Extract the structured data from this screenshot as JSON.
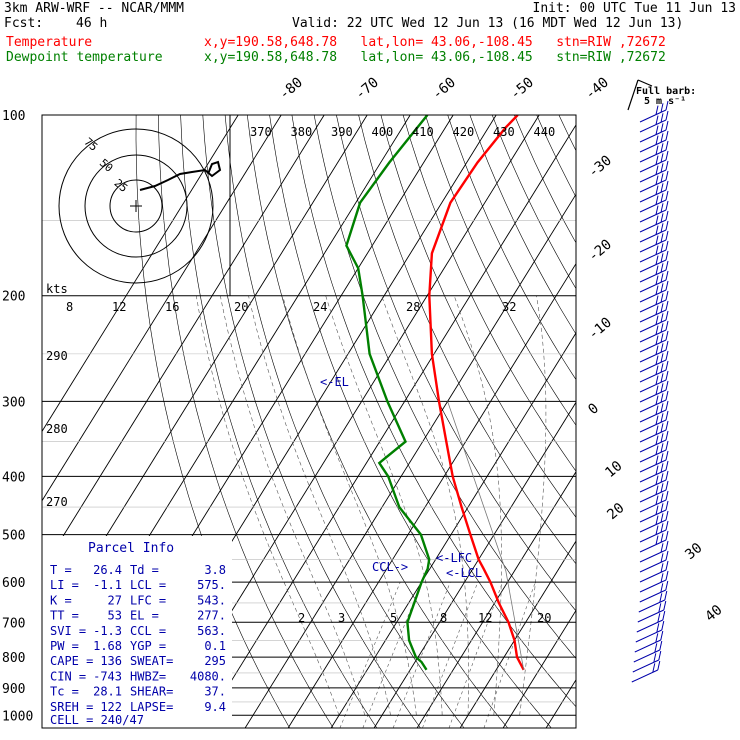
{
  "header": {
    "model": "3km ARW-WRF -- NCAR/MMM",
    "init": "Init: 00 UTC Tue 11 Jun 13",
    "fcst_label": "Fcst:",
    "fcst_value": "46 h",
    "valid": "Valid: 22 UTC Wed 12 Jun 13 (16 MDT Wed 12 Jun 13)",
    "temp_label": "Temperature",
    "temp_info": "x,y=190.58,648.78   lat,lon= 43.06,-108.45   stn=RIW ,72672",
    "dew_label": "Dewpoint temperature",
    "dew_info": "x,y=190.58,648.78   lat,lon= 43.06,-108.45   stn=RIW ,72672",
    "colors": {
      "temperature": "#ff0000",
      "dewpoint": "#008000"
    }
  },
  "chart_data": {
    "type": "line",
    "subtype": "skew-T log-P sounding",
    "y_axis_scale": "log",
    "ylim": [
      1000,
      100
    ],
    "pressure_ticks": [
      "100",
      "200",
      "300",
      "400",
      "500",
      "600",
      "700",
      "800",
      "900",
      "1000"
    ],
    "isotherm_labels": [
      "-80",
      "-70",
      "-60",
      "-50",
      "-40",
      "-30",
      "-20",
      "-10",
      "0",
      "10",
      "20",
      "30",
      "40"
    ],
    "mixing_ratio_labels": [
      "2",
      "3",
      "5",
      "8",
      "12",
      "20"
    ],
    "theta_e_labels": [
      "370",
      "380",
      "390",
      "400",
      "410",
      "420",
      "430",
      "440"
    ],
    "bottom_theta_labels": [
      "290",
      "280",
      "270"
    ],
    "series": [
      {
        "name": "Temperature",
        "color": "#ff0000",
        "points": [
          [
            840,
            26.4
          ],
          [
            800,
            23.0
          ],
          [
            750,
            20.0
          ],
          [
            700,
            16.0
          ],
          [
            650,
            11.0
          ],
          [
            600,
            6.0
          ],
          [
            570,
            2.5
          ],
          [
            550,
            0.0
          ],
          [
            500,
            -5.5
          ],
          [
            450,
            -11.5
          ],
          [
            400,
            -18.0
          ],
          [
            350,
            -24.5
          ],
          [
            300,
            -32.0
          ],
          [
            250,
            -40.5
          ],
          [
            200,
            -49.5
          ],
          [
            170,
            -55.0
          ],
          [
            140,
            -58.0
          ],
          [
            120,
            -57.5
          ],
          [
            105,
            -56.0
          ],
          [
            100,
            -55.0
          ]
        ]
      },
      {
        "name": "Dewpoint temperature",
        "color": "#008000",
        "points": [
          [
            840,
            3.8
          ],
          [
            815,
            1.5
          ],
          [
            800,
            -0.5
          ],
          [
            750,
            -4.5
          ],
          [
            700,
            -7.5
          ],
          [
            600,
            -10.0
          ],
          [
            570,
            -10.5
          ],
          [
            550,
            -11.5
          ],
          [
            500,
            -17.0
          ],
          [
            450,
            -26.0
          ],
          [
            400,
            -33.0
          ],
          [
            380,
            -37.0
          ],
          [
            350,
            -34.0
          ],
          [
            300,
            -44.0
          ],
          [
            250,
            -55.0
          ],
          [
            200,
            -65.0
          ],
          [
            180,
            -70.0
          ],
          [
            165,
            -76.0
          ],
          [
            140,
            -79.0
          ],
          [
            120,
            -78.0
          ],
          [
            100,
            -76.0
          ]
        ]
      }
    ],
    "annotations": {
      "el": "<-EL",
      "lfc": "<-LFC",
      "lcl": "<-LCL",
      "ccl": "CCL->"
    },
    "parcel_info": {
      "title": "Parcel Info",
      "rows": [
        [
          "T  =",
          "26.4",
          "Td =",
          "3.8"
        ],
        [
          "LI =",
          "-1.1",
          "LCL =",
          "575."
        ],
        [
          "K  =",
          "27",
          "LFC =",
          "543."
        ],
        [
          "TT =",
          "53",
          "EL  =",
          "277."
        ],
        [
          "SVI =",
          "-1.3",
          "CCL =",
          "563."
        ],
        [
          "PW =",
          "1.68",
          "YGP =",
          "0.1"
        ],
        [
          "CAPE =",
          "136",
          "SWEAT=",
          "295"
        ],
        [
          "CIN =",
          "-743",
          "HWBZ=",
          "4080."
        ],
        [
          "Tc =",
          "28.1",
          "SHEAR=",
          "37."
        ],
        [
          "SREH =",
          "122",
          "LAPSE=",
          "9.4"
        ]
      ],
      "cell": "CELL = 240/47"
    },
    "hodograph": {
      "speed_unit": "kts",
      "ring_labels": [
        "75",
        "50",
        "25"
      ],
      "x_ticks": [
        "8",
        "12",
        "16",
        "20",
        "24",
        "28",
        "32"
      ]
    },
    "wind_barbs": {
      "legend_line1": "Full barb:",
      "legend_line2": "5 m s⁻¹"
    }
  }
}
